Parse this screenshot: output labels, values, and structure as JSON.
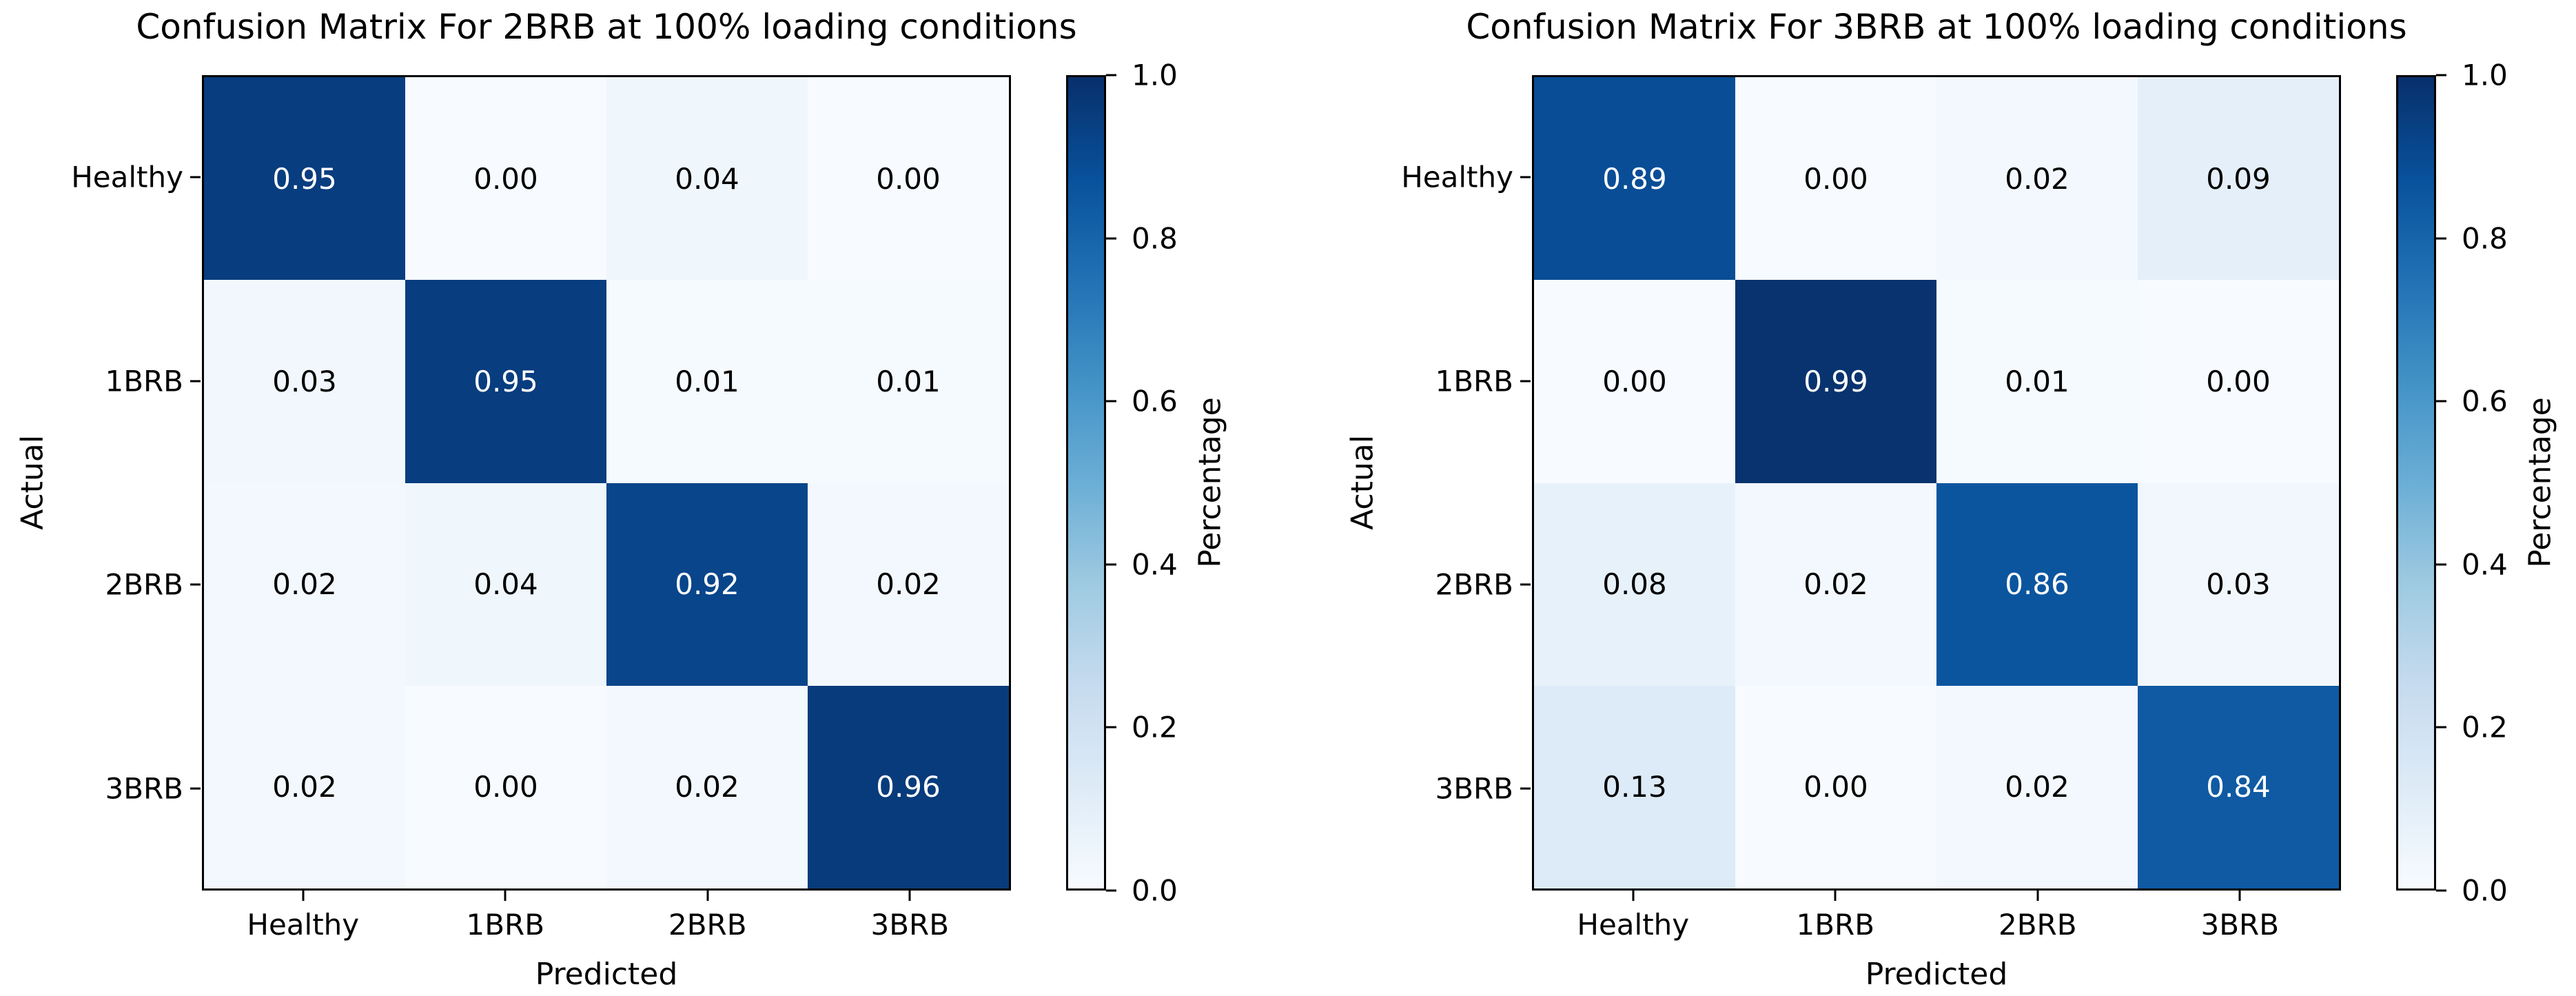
{
  "figure": {
    "background_color": "#ffffff",
    "text_color": "#000000",
    "colormap_name": "Blues",
    "colormap_anchors": [
      "#f7fbff",
      "#deebf7",
      "#c6dbef",
      "#9ecae1",
      "#6baed6",
      "#4292c6",
      "#2171b5",
      "#08519c",
      "#08306b"
    ],
    "cell_text_on_dark": "#ffffff",
    "cell_text_on_light": "#000000"
  },
  "chart_data": [
    {
      "type": "heatmap",
      "title": "Confusion Matrix For 2BRB at 100% loading conditions",
      "xlabel": "Predicted",
      "ylabel": "Actual",
      "x_categories": [
        "Healthy",
        "1BRB",
        "2BRB",
        "3BRB"
      ],
      "y_categories": [
        "Healthy",
        "1BRB",
        "2BRB",
        "3BRB"
      ],
      "values": [
        [
          0.95,
          0.0,
          0.04,
          0.0
        ],
        [
          0.03,
          0.95,
          0.01,
          0.01
        ],
        [
          0.02,
          0.04,
          0.92,
          0.02
        ],
        [
          0.02,
          0.0,
          0.02,
          0.96
        ]
      ],
      "colorbar": {
        "label": "Percentage",
        "ticks": [
          "1.0",
          "0.8",
          "0.6",
          "0.4",
          "0.2",
          "0.0"
        ],
        "range": [
          0,
          1
        ]
      },
      "grid": false,
      "legend": null
    },
    {
      "type": "heatmap",
      "title": "Confusion Matrix For 3BRB at 100% loading conditions",
      "xlabel": "Predicted",
      "ylabel": "Actual",
      "x_categories": [
        "Healthy",
        "1BRB",
        "2BRB",
        "3BRB"
      ],
      "y_categories": [
        "Healthy",
        "1BRB",
        "2BRB",
        "3BRB"
      ],
      "values": [
        [
          0.89,
          0.0,
          0.02,
          0.09
        ],
        [
          0.0,
          0.99,
          0.01,
          0.0
        ],
        [
          0.08,
          0.02,
          0.86,
          0.03
        ],
        [
          0.13,
          0.0,
          0.02,
          0.84
        ]
      ],
      "colorbar": {
        "label": "Percentage",
        "ticks": [
          "1.0",
          "0.8",
          "0.6",
          "0.4",
          "0.2",
          "0.0"
        ],
        "range": [
          0,
          1
        ]
      },
      "grid": false,
      "legend": null
    }
  ]
}
